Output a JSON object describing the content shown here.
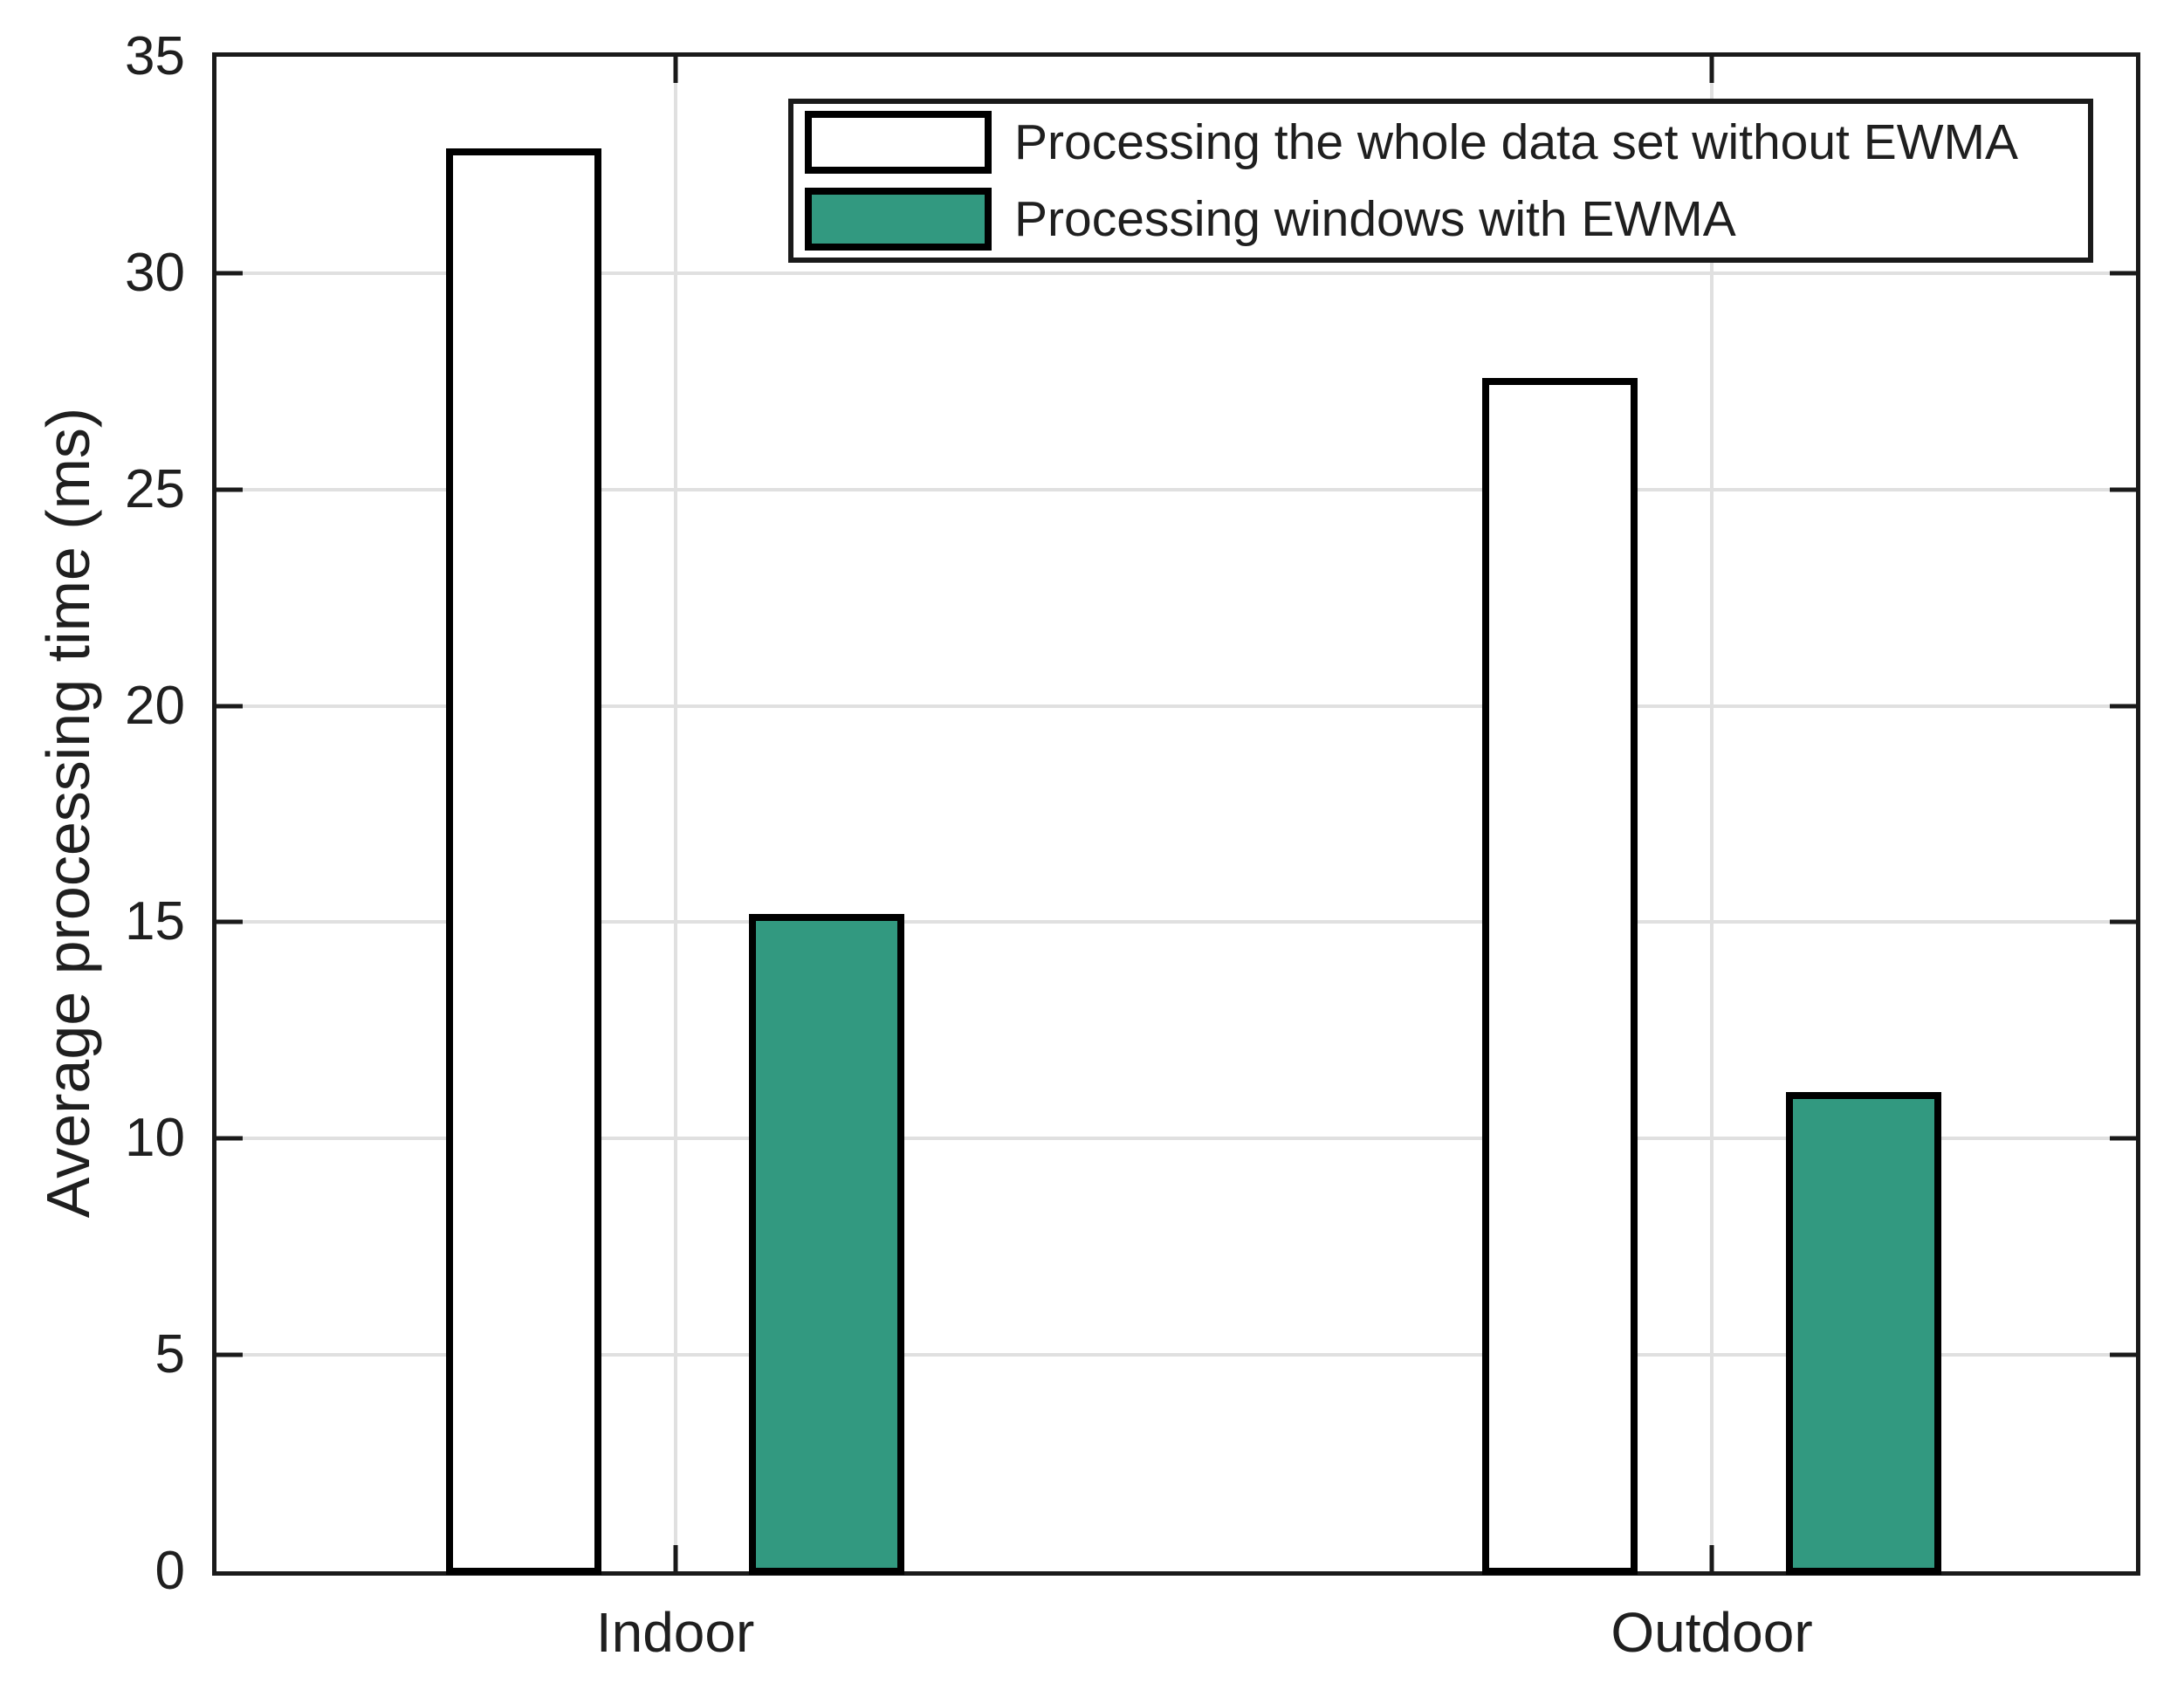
{
  "chart_data": {
    "type": "bar",
    "title": "",
    "categories": [
      "Indoor",
      "Outdoor"
    ],
    "series": [
      {
        "name": "Processing the whole data set without EWMA",
        "values": [
          32.8,
          27.5
        ],
        "fill": "#ffffff"
      },
      {
        "name": "Processing windows with EWMA",
        "values": [
          15.1,
          11.0
        ],
        "fill": "#329980"
      }
    ],
    "xlabel": "",
    "ylabel": "Average processing time (ms)",
    "ylim": [
      0,
      35
    ],
    "yticks": [
      0,
      5,
      10,
      15,
      20,
      25,
      30,
      35
    ],
    "grid": true,
    "legend_position": "top-inside",
    "colors": {
      "bar_edge": "#000000",
      "grid": "#e0e0e0",
      "axis": "#1a1a1a",
      "text": "#1f1f1f",
      "background": "#ffffff"
    }
  }
}
